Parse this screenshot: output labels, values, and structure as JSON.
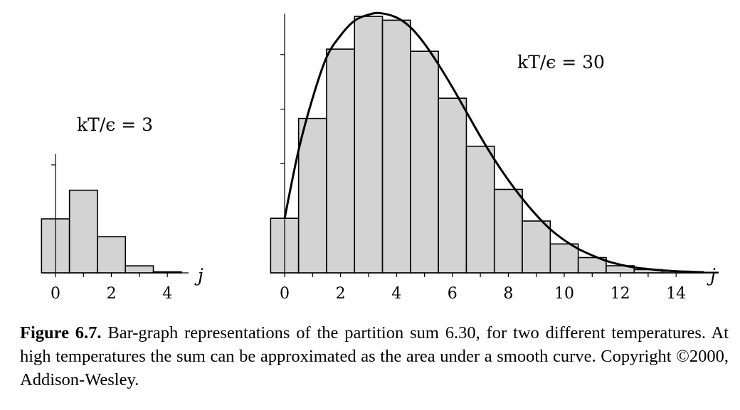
{
  "chart_data": [
    {
      "type": "bar",
      "panel_label": "kT/ϵ = 3",
      "xlabel": "j",
      "x": [
        0,
        1,
        2,
        3,
        4
      ],
      "values": [
        1.0,
        1.53,
        0.67,
        0.13,
        0.02
      ],
      "xticks": [
        "0",
        "2",
        "4"
      ],
      "xlim": [
        -0.5,
        4.5
      ],
      "ylim": [
        0,
        2.2
      ],
      "yticks": [
        2.0
      ]
    },
    {
      "type": "bar",
      "panel_label": "kT/ϵ = 30",
      "xlabel": "j",
      "x": [
        0,
        1,
        2,
        3,
        4,
        5,
        6,
        7,
        8,
        9,
        10,
        11,
        12,
        13,
        14,
        15
      ],
      "values": [
        1.0,
        2.83,
        4.1,
        4.7,
        4.63,
        4.06,
        3.2,
        2.32,
        1.53,
        0.95,
        0.53,
        0.28,
        0.13,
        0.06,
        0.03,
        0.01
      ],
      "xticks": [
        "0",
        "2",
        "4",
        "6",
        "8",
        "10",
        "12",
        "14"
      ],
      "xlim": [
        -0.5,
        15.2
      ],
      "ylim": [
        0,
        4.75
      ],
      "yticks": [
        1.0,
        2.0,
        3.0,
        4.0
      ],
      "curve": {
        "x": [
          0,
          0.5,
          1,
          1.5,
          2,
          2.5,
          3,
          3.4,
          4,
          4.5,
          5,
          5.5,
          6,
          6.5,
          7,
          7.5,
          8,
          8.5,
          9,
          9.5,
          10,
          10.5,
          11,
          11.5,
          12,
          12.5,
          13,
          13.5,
          14,
          14.5,
          15
        ],
        "y": [
          1.0,
          2.25,
          3.2,
          3.95,
          4.35,
          4.62,
          4.73,
          4.76,
          4.68,
          4.5,
          4.2,
          3.82,
          3.4,
          2.95,
          2.5,
          2.08,
          1.7,
          1.36,
          1.06,
          0.8,
          0.6,
          0.44,
          0.32,
          0.22,
          0.15,
          0.1,
          0.07,
          0.045,
          0.03,
          0.02,
          0.012
        ]
      }
    }
  ],
  "caption": {
    "figure_number": "Figure 6.7.",
    "text": " Bar-graph representations of the partition sum 6.30, for two different temperatures. At high temperatures the sum can be approximated as the area under a smooth curve. Copyright ©2000, Addison-Wesley."
  }
}
